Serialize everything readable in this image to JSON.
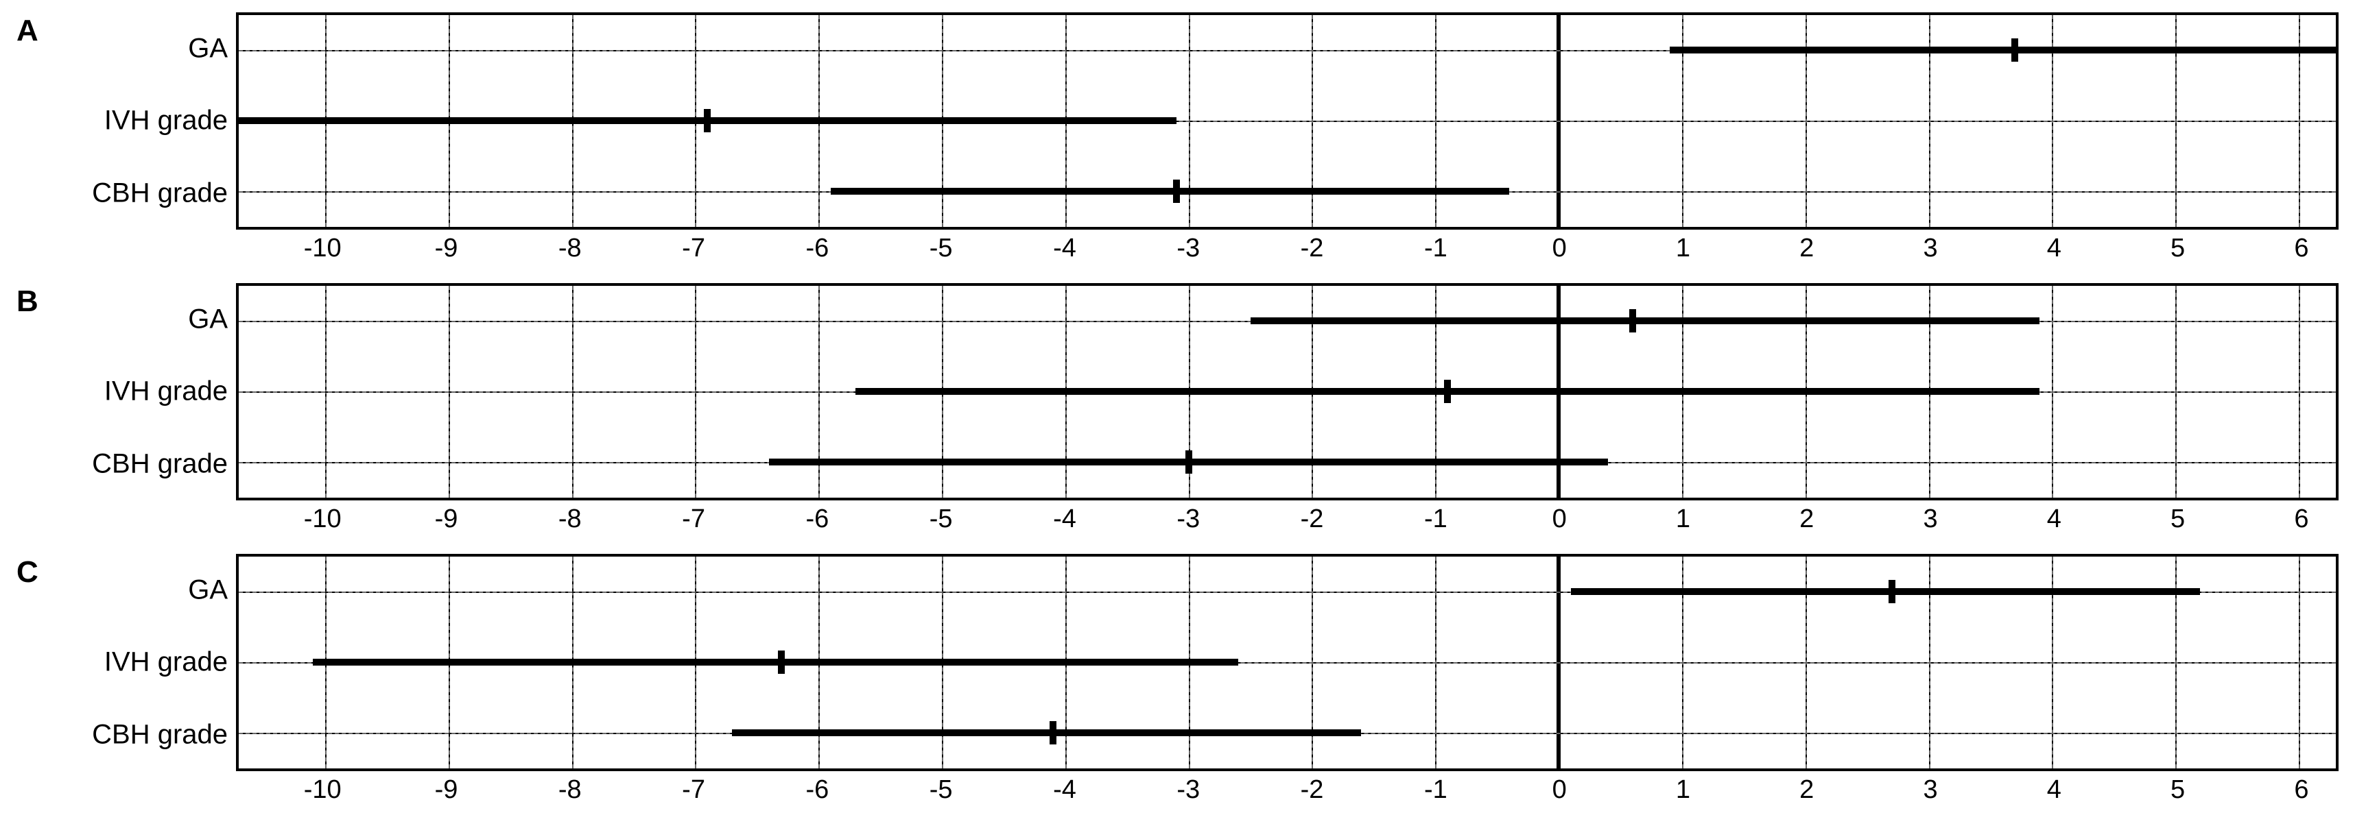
{
  "type": "forest-plot",
  "background_color": "#ffffff",
  "border_color": "#000000",
  "grid_color": "#666666",
  "bar_color": "#000000",
  "text_color": "#000000",
  "font_family": "Arial",
  "panel_letter_fontsize": 44,
  "row_label_fontsize": 40,
  "tick_fontsize": 38,
  "xlim": [
    -10.7,
    6.3
  ],
  "xticks": [
    -10,
    -9,
    -8,
    -7,
    -6,
    -5,
    -4,
    -3,
    -2,
    -1,
    0,
    1,
    2,
    3,
    4,
    5,
    6
  ],
  "panels": [
    {
      "id": "A",
      "rows": [
        {
          "label": "GA",
          "low": 0.9,
          "point": 3.7,
          "high": 6.3
        },
        {
          "label": "IVH grade",
          "low": -10.7,
          "point": -6.9,
          "high": -3.1
        },
        {
          "label": "CBH grade",
          "low": -5.9,
          "point": -3.1,
          "high": -0.4
        }
      ]
    },
    {
      "id": "B",
      "rows": [
        {
          "label": "GA",
          "low": -2.5,
          "point": 0.6,
          "high": 3.9
        },
        {
          "label": "IVH grade",
          "low": -5.7,
          "point": -0.9,
          "high": 3.9
        },
        {
          "label": "CBH grade",
          "low": -6.4,
          "point": -3.0,
          "high": 0.4
        }
      ]
    },
    {
      "id": "C",
      "rows": [
        {
          "label": "GA",
          "low": 0.1,
          "point": 2.7,
          "high": 5.2
        },
        {
          "label": "IVH grade",
          "low": -10.1,
          "point": -6.3,
          "high": -2.6
        },
        {
          "label": "CBH grade",
          "low": -6.7,
          "point": -4.1,
          "high": -1.6
        }
      ]
    }
  ]
}
